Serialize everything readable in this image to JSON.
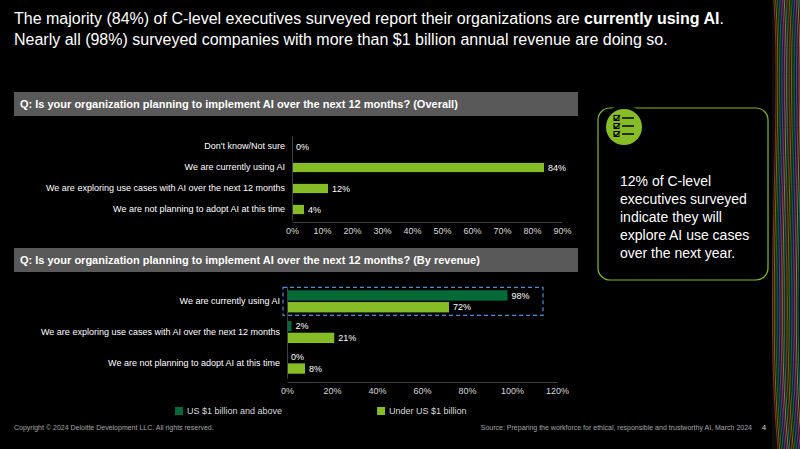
{
  "title_lines": [
    [
      "The majority (84%) of C-level executives surveyed report their organizations are ",
      "currently using AI",
      "."
    ],
    [
      "Nearly all (98%) surveyed companies with more than $1 billion annual revenue are doing so."
    ]
  ],
  "chart_data": [
    {
      "type": "bar",
      "orientation": "horizontal",
      "title": "Q: Is your organization planning to implement AI over the next 12 months? (Overall)",
      "categories": [
        "Don't know/Not sure",
        "We are currently using AI",
        "We are exploring use cases with AI over the next 12 months",
        "We are not planning to adopt AI at this time"
      ],
      "values": [
        0,
        84,
        12,
        4
      ],
      "value_labels": [
        "0%",
        "84%",
        "12%",
        "4%"
      ],
      "color": "#86BC25",
      "xlim": [
        0,
        90
      ],
      "xticks": [
        {
          "value": 0,
          "label": "0%"
        },
        {
          "value": 10,
          "label": "10%"
        },
        {
          "value": 20,
          "label": "20%"
        },
        {
          "value": 30,
          "label": "30%"
        },
        {
          "value": 40,
          "label": "40%"
        },
        {
          "value": 50,
          "label": "50%"
        },
        {
          "value": 60,
          "label": "60%"
        },
        {
          "value": 70,
          "label": "70%"
        },
        {
          "value": 80,
          "label": "80%"
        },
        {
          "value": 90,
          "label": "90%"
        }
      ],
      "grid": false,
      "data_labels": true
    },
    {
      "type": "bar",
      "orientation": "horizontal",
      "title": "Q: Is your organization planning to implement AI over the next 12 months? (By revenue)",
      "categories": [
        "We are currently using AI",
        "We are exploring use cases with AI over the next 12 months",
        "We are not planning to adopt AI at this time"
      ],
      "series": [
        {
          "name": "US $1 billion and above",
          "color": "#046A38",
          "values": [
            98,
            2,
            0
          ],
          "value_labels": [
            "98%",
            "2%",
            "0%"
          ]
        },
        {
          "name": "Under US $1 billion",
          "color": "#86BC25",
          "values": [
            72,
            21,
            8
          ],
          "value_labels": [
            "72%",
            "21%",
            "8%"
          ]
        }
      ],
      "xlim": [
        0,
        120
      ],
      "xticks": [
        {
          "value": 0,
          "label": "0%"
        },
        {
          "value": 20,
          "label": "20%"
        },
        {
          "value": 40,
          "label": "40%"
        },
        {
          "value": 60,
          "label": "60%"
        },
        {
          "value": 80,
          "label": "80%"
        },
        {
          "value": 100,
          "label": "100%"
        },
        {
          "value": 120,
          "label": "120%"
        }
      ],
      "grid": false,
      "data_labels": true,
      "legend": "bottom"
    }
  ],
  "callout": {
    "text": "12% of C-level executives surveyed indicate they will explore AI use cases over the next year."
  },
  "footer": {
    "copyright": "Copyright © 2024 Deloitte Development LLC. All rights reserved.",
    "source": "Source: Preparing the workforce for ethical, responsible and trustworthy AI, March 2024",
    "page": "4"
  }
}
